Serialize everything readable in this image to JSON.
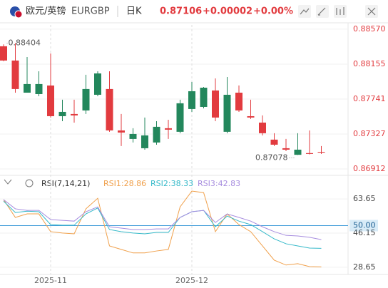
{
  "header": {
    "pair": "欧元/英镑",
    "symbol": "EURGBP",
    "period": "日K",
    "price": "0.87106",
    "change": "+0.00002",
    "change_pct": "+0.00%"
  },
  "chart_data": [
    {
      "type": "candlestick",
      "up_color": "#23875c",
      "down_color": "#e23b3f",
      "grid": true,
      "categories": [
        null,
        null,
        null,
        null,
        "2025-11",
        null,
        null,
        null,
        null,
        null,
        null,
        null,
        null,
        null,
        null,
        null,
        "2025-12",
        null,
        null,
        null,
        null,
        null,
        null,
        null,
        null,
        null,
        null,
        null
      ],
      "open": [
        0.88367,
        0.88198,
        0.87817,
        0.878,
        0.87902,
        0.87538,
        0.87564,
        0.87606,
        0.87792,
        0.8786,
        0.87369,
        0.87268,
        0.87158,
        0.87226,
        0.87395,
        0.87353,
        0.87623,
        0.87648,
        0.87843,
        0.87353,
        0.87817,
        0.87538,
        0.87462,
        0.8726,
        0.87158,
        0.8708,
        0.871,
        0.87115
      ],
      "high": [
        0.8839,
        0.88404,
        0.8824,
        0.88071,
        0.88282,
        0.87733,
        0.87733,
        0.88029,
        0.88071,
        0.88071,
        0.87564,
        0.87395,
        0.87522,
        0.87479,
        0.87496,
        0.87733,
        0.87944,
        0.87885,
        0.87986,
        0.88003,
        0.87902,
        0.87733,
        0.87547,
        0.87336,
        0.87268,
        0.87336,
        0.87369,
        0.87184
      ],
      "low": [
        0.8819,
        0.87817,
        0.87817,
        0.87775,
        0.87522,
        0.87479,
        0.87462,
        0.87564,
        0.87775,
        0.87353,
        0.87184,
        0.87226,
        0.87141,
        0.872,
        0.87268,
        0.87336,
        0.87589,
        0.87631,
        0.87479,
        0.87336,
        0.87589,
        0.87505,
        0.8731,
        0.87184,
        0.87124,
        0.87078,
        0.87085,
        0.8709
      ],
      "close": [
        0.88198,
        0.8786,
        0.87919,
        0.87919,
        0.87538,
        0.87589,
        0.87547,
        0.8786,
        0.88045,
        0.87369,
        0.87344,
        0.87327,
        0.8731,
        0.87412,
        0.87378,
        0.87691,
        0.87834,
        0.87876,
        0.87522,
        0.87792,
        0.87606,
        0.87522,
        0.87336,
        0.872,
        0.87141,
        0.87141,
        0.8709,
        0.87106
      ],
      "ylim": [
        0.8687,
        0.8862
      ],
      "yticks": [
        {
          "value": 0.8857,
          "label": "0.88570"
        },
        0.88155,
        0.87741,
        0.87327,
        0.86912
      ],
      "high_label": "0.88404",
      "low_label": "0.87078"
    },
    {
      "type": "line",
      "title": "RSI(7,14,21)",
      "ylim": [
        25.7,
        69.9
      ],
      "yticks": [
        28.65,
        46.15,
        63.65
      ],
      "reference": {
        "value": 50,
        "label": "50.00"
      },
      "reference_color": "#3d9ad8",
      "series": [
        {
          "name": "RSI1:28.86",
          "color": "#f0a04b",
          "values": [
            63.3,
            54.2,
            56.0,
            56.0,
            46.9,
            46.2,
            45.8,
            58.6,
            64.0,
            39.6,
            37.8,
            36.0,
            36.0,
            37.0,
            37.8,
            59.6,
            67.7,
            66.9,
            46.9,
            56.0,
            50.5,
            46.9,
            39.6,
            32.3,
            29.8,
            30.5,
            29.0,
            28.86
          ]
        },
        {
          "name": "RSI2:38.33",
          "color": "#35b9c9",
          "values": [
            62.5,
            56.7,
            57.4,
            57.1,
            50.5,
            50.2,
            50.2,
            56.0,
            59.0,
            48.0,
            46.9,
            46.2,
            45.8,
            46.5,
            46.5,
            54.2,
            57.1,
            57.8,
            49.4,
            54.9,
            52.3,
            50.5,
            46.9,
            43.2,
            40.7,
            39.6,
            38.5,
            38.33
          ]
        },
        {
          "name": "RSI3:42.83",
          "color": "#a78ddf",
          "values": [
            63.3,
            58.6,
            57.8,
            57.8,
            53.1,
            52.7,
            52.3,
            57.1,
            59.6,
            49.4,
            48.7,
            48.0,
            48.0,
            48.3,
            48.3,
            54.2,
            57.1,
            57.8,
            51.6,
            56.0,
            54.2,
            52.3,
            49.4,
            46.9,
            45.0,
            44.7,
            44.0,
            42.83
          ]
        }
      ]
    }
  ]
}
